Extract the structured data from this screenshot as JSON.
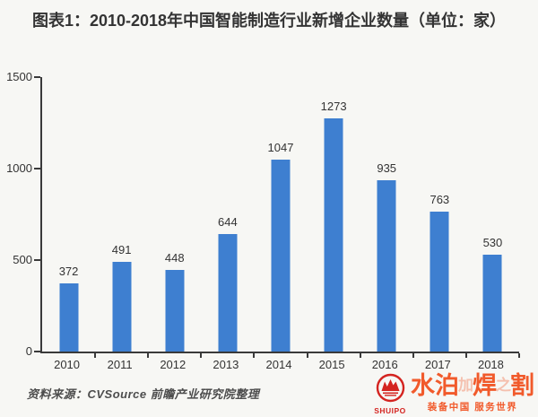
{
  "header": {
    "title": "图表1：2010-2018年中国智能制造行业新增企业数量（单位：家）"
  },
  "chart_data": {
    "type": "bar",
    "title": "2010-2018年中国智能制造行业新增企业数量",
    "unit": "家",
    "categories": [
      "2010",
      "2011",
      "2012",
      "2013",
      "2014",
      "2015",
      "2016",
      "2017",
      "2018"
    ],
    "values": [
      372,
      491,
      448,
      644,
      1047,
      1273,
      935,
      763,
      530
    ],
    "ylim": [
      0,
      1500
    ],
    "yticks": [
      0,
      500,
      1000,
      1500
    ],
    "xlabel": "",
    "ylabel": "",
    "grid": false,
    "legend": "none",
    "value_labels": true,
    "bar_color": "#3e7fd0",
    "axis_color": "#3a3a3a"
  },
  "footer": {
    "source_note": "资料来源：CVSource  前瞻产业研究院整理"
  },
  "watermark": {
    "logo_text": "SHUIPO",
    "brand_part1": "水泊",
    "overlay_char1": "加",
    "brand_part2": "焊",
    "overlay_char2": "之",
    "brand_part3": "割",
    "tagline": "装备中国 服务世界",
    "brand_color": "#f15a2b",
    "logo_color": "#d42420"
  }
}
